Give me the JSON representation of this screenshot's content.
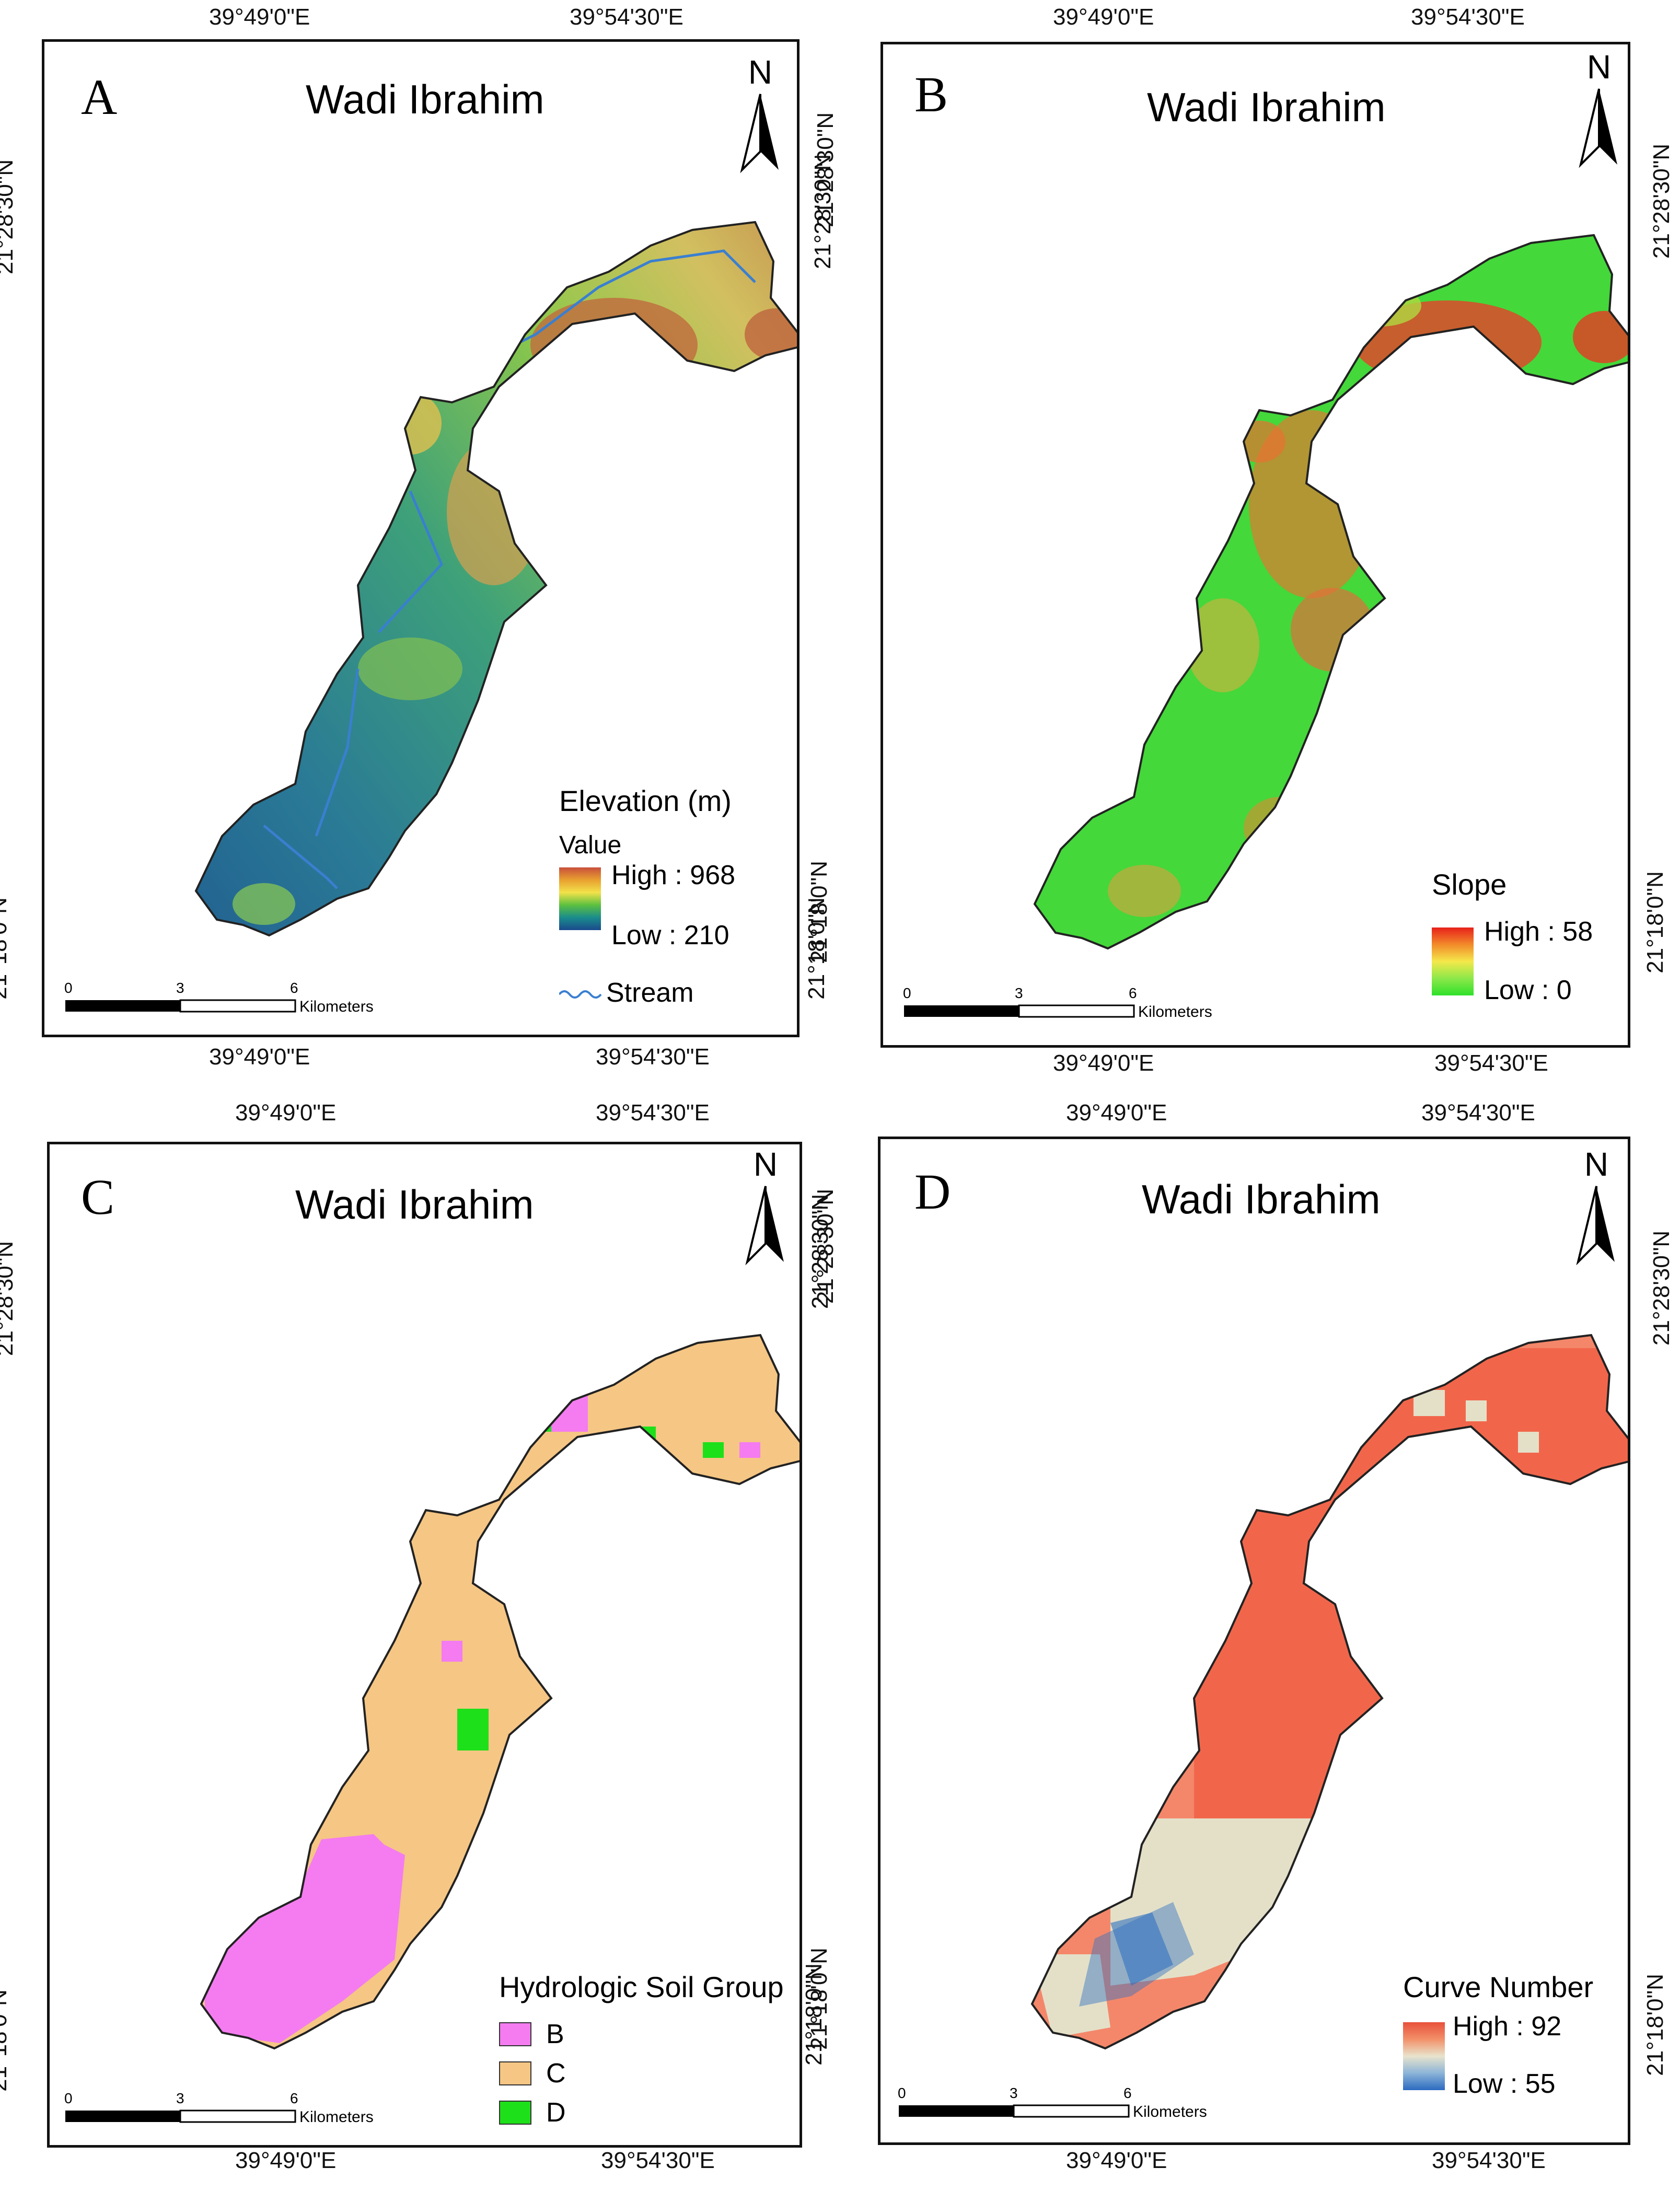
{
  "panels": [
    {
      "letter": "A",
      "title": "Wadi Ibrahim",
      "north": "N",
      "lon_labels": [
        "39°49'0\"E",
        "39°54'30\"E"
      ],
      "lat_labels": [
        "21°28'30\"N",
        "21°18'0\"N"
      ],
      "legend": {
        "title": "Elevation (m)",
        "subtitle": "Value",
        "high": "High : 968",
        "low": "Low : 210",
        "ramp": [
          "#c8503c",
          "#e8a030",
          "#f2e24a",
          "#5cc040",
          "#1a8c8c",
          "#1a4a8c"
        ],
        "extra": "Stream",
        "extra_color": "#3a7fd0"
      },
      "scale": {
        "ticks": [
          "0",
          "3",
          "6"
        ],
        "unit": "Kilometers"
      },
      "fill": [
        "#2a7a96",
        "#3da07a",
        "#8cc84a",
        "#d2c060",
        "#b86a40"
      ]
    },
    {
      "letter": "B",
      "title": "Wadi Ibrahim",
      "north": "N",
      "lon_labels": [
        "39°49'0\"E",
        "39°54'30\"E"
      ],
      "lat_labels": [
        "21°28'30\"N",
        "21°18'0\"N"
      ],
      "legend": {
        "title": "Slope",
        "high": "High : 58",
        "low": "Low : 0",
        "ramp": [
          "#e8201a",
          "#f28a2a",
          "#f4e84a",
          "#8ce84a",
          "#2ee02a"
        ]
      },
      "scale": {
        "ticks": [
          "0",
          "3",
          "6"
        ],
        "unit": "Kilometers"
      },
      "fill": [
        "#3ed43a",
        "#8ee040",
        "#e0c040",
        "#e86030",
        "#d82a1e"
      ]
    },
    {
      "letter": "C",
      "title": "Wadi Ibrahim",
      "north": "N",
      "lon_labels": [
        "39°49'0\"E",
        "39°54'30\"E"
      ],
      "lat_labels": [
        "21°28'30\"N",
        "21°18'0\"N"
      ],
      "legend": {
        "title": "Hydrologic Soil Group",
        "classes": [
          {
            "label": "B",
            "color": "#f47cf0"
          },
          {
            "label": "C",
            "color": "#f5c684"
          },
          {
            "label": "D",
            "color": "#1ee01a"
          }
        ]
      },
      "scale": {
        "ticks": [
          "0",
          "3",
          "6"
        ],
        "unit": "Kilometers"
      }
    },
    {
      "letter": "D",
      "title": "Wadi Ibrahim",
      "north": "N",
      "lon_labels": [
        "39°49'0\"E",
        "39°54'30\"E"
      ],
      "lat_labels": [
        "21°28'30\"N",
        "21°18'0\"N"
      ],
      "legend": {
        "title": "Curve Number",
        "high": "High : 92",
        "low": "Low : 55",
        "ramp": [
          "#e8503a",
          "#f2906a",
          "#e8e4cc",
          "#8cb4d8",
          "#2a6ac0"
        ]
      },
      "scale": {
        "ticks": [
          "0",
          "3",
          "6"
        ],
        "unit": "Kilometers"
      },
      "fill": [
        "#f0583e",
        "#f4876a",
        "#e4e0c8",
        "#3070c0"
      ]
    }
  ]
}
